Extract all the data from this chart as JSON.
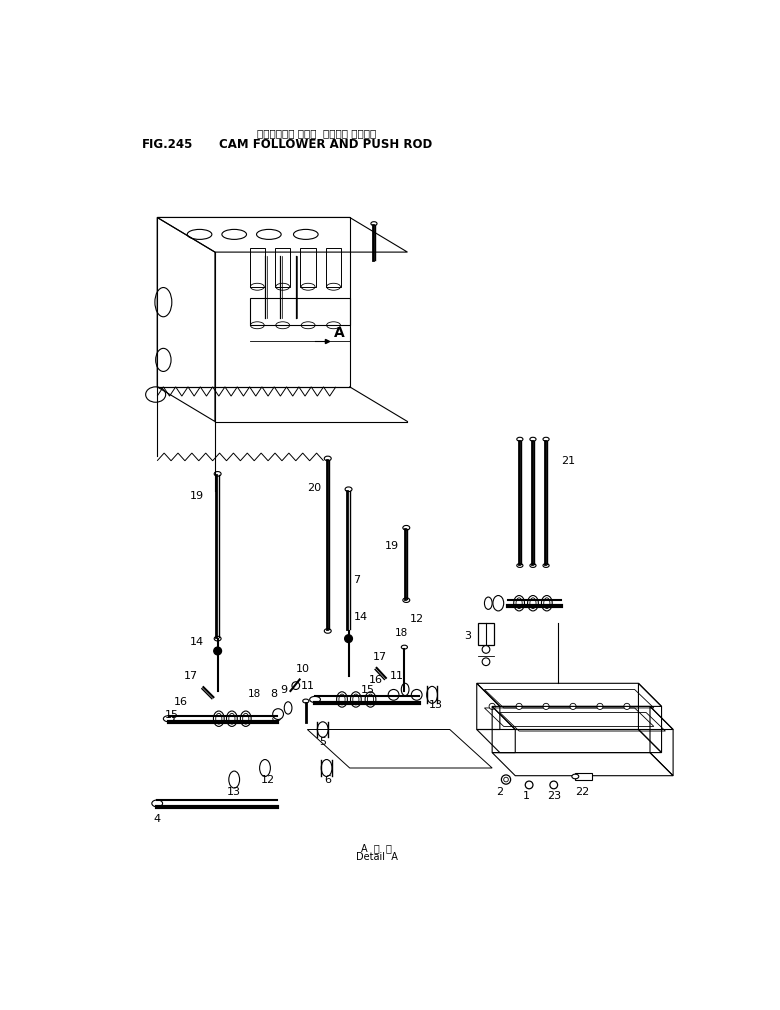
{
  "title_japanese": "cam follower oyobi push rod",
  "title_fig": "FIG.245",
  "title_english": "CAM FOLLOWER AND PUSH ROD",
  "detail_label": "Detail  A",
  "bg_color": "#ffffff",
  "line_color": "#000000"
}
